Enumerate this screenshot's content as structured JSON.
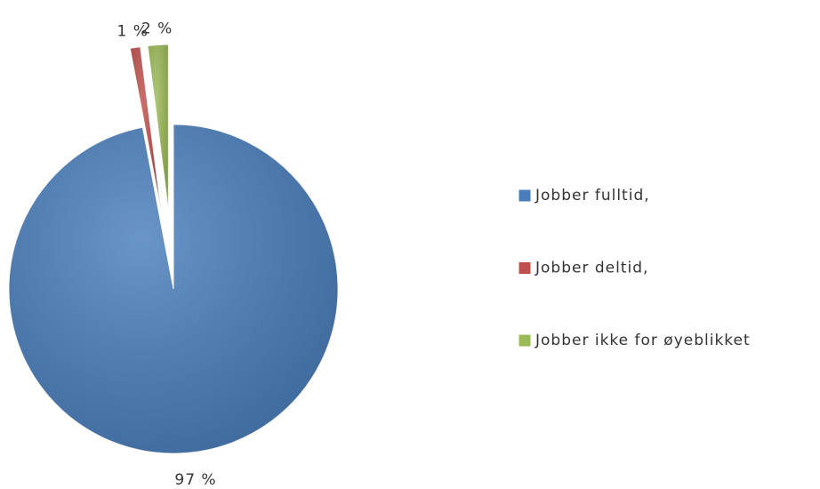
{
  "chart_data": {
    "type": "pie",
    "categories": [
      "Jobber fulltid,",
      "Jobber deltid,",
      "Jobber ikke for øyeblikket"
    ],
    "values": [
      97,
      1,
      2
    ],
    "value_labels": [
      "97 %",
      "1 %",
      "2 %"
    ],
    "colors": [
      "#4a7ebb",
      "#c0504d",
      "#9bbb59"
    ],
    "legend": "right"
  }
}
